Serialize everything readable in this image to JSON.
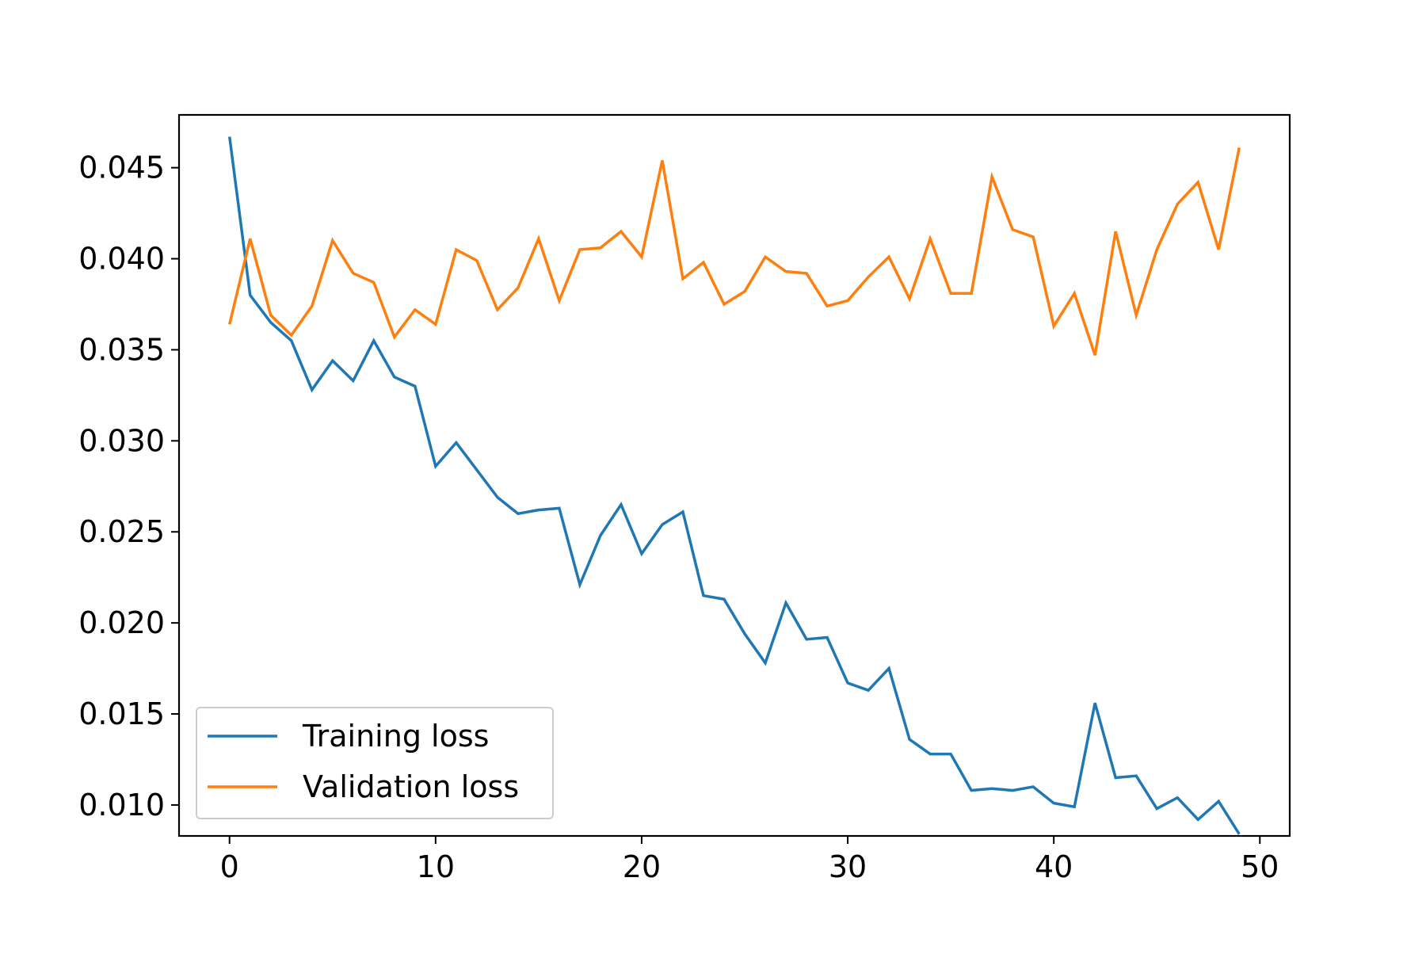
{
  "chart_data": {
    "type": "line",
    "title": "",
    "xlabel": "",
    "ylabel": "",
    "xlim": [
      -2.45,
      51.45
    ],
    "ylim": [
      0.0083,
      0.0479
    ],
    "xticks": [
      0,
      10,
      20,
      30,
      40,
      50
    ],
    "xtick_labels": [
      "0",
      "10",
      "20",
      "30",
      "40",
      "50"
    ],
    "yticks": [
      0.01,
      0.015,
      0.02,
      0.025,
      0.03,
      0.035,
      0.04,
      0.045
    ],
    "ytick_labels": [
      "0.010",
      "0.015",
      "0.020",
      "0.025",
      "0.030",
      "0.035",
      "0.040",
      "0.045"
    ],
    "grid": false,
    "legend_position": "lower-left",
    "x": [
      0,
      1,
      2,
      3,
      4,
      5,
      6,
      7,
      8,
      9,
      10,
      11,
      12,
      13,
      14,
      15,
      16,
      17,
      18,
      19,
      20,
      21,
      22,
      23,
      24,
      25,
      26,
      27,
      28,
      29,
      30,
      31,
      32,
      33,
      34,
      35,
      36,
      37,
      38,
      39,
      40,
      41,
      42,
      43,
      44,
      45,
      46,
      47,
      48,
      49
    ],
    "series": [
      {
        "name": "Training loss",
        "color": "#1f77b4",
        "values": [
          0.0467,
          0.038,
          0.0365,
          0.0355,
          0.0328,
          0.0344,
          0.0333,
          0.0355,
          0.0335,
          0.033,
          0.0286,
          0.0299,
          0.0284,
          0.0269,
          0.026,
          0.0262,
          0.0263,
          0.0221,
          0.0248,
          0.0265,
          0.0238,
          0.0254,
          0.0261,
          0.0215,
          0.0213,
          0.0194,
          0.0178,
          0.0211,
          0.0191,
          0.0192,
          0.0167,
          0.0163,
          0.0175,
          0.0136,
          0.0128,
          0.0128,
          0.0108,
          0.0109,
          0.0108,
          0.011,
          0.0101,
          0.0099,
          0.0156,
          0.0115,
          0.0116,
          0.0098,
          0.0104,
          0.0092,
          0.0102,
          0.0084
        ]
      },
      {
        "name": "Validation loss",
        "color": "#ff7f0e",
        "values": [
          0.0364,
          0.0411,
          0.0369,
          0.0358,
          0.0374,
          0.041,
          0.0392,
          0.0387,
          0.0357,
          0.0372,
          0.0364,
          0.0405,
          0.0399,
          0.0372,
          0.0384,
          0.0411,
          0.0377,
          0.0405,
          0.0406,
          0.0415,
          0.0401,
          0.0454,
          0.0389,
          0.0398,
          0.0375,
          0.0382,
          0.0401,
          0.0393,
          0.0392,
          0.0374,
          0.0377,
          0.039,
          0.0401,
          0.0378,
          0.0411,
          0.0381,
          0.0381,
          0.0445,
          0.0416,
          0.0412,
          0.0363,
          0.0381,
          0.0347,
          0.0415,
          0.0369,
          0.0405,
          0.043,
          0.0442,
          0.0405,
          0.0461
        ]
      }
    ]
  }
}
